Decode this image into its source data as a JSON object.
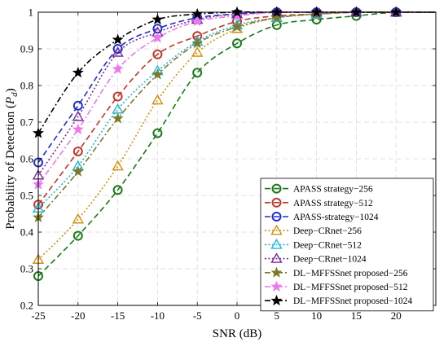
{
  "chart_data": {
    "type": "line",
    "title": "",
    "xlabel": "SNR (dB)",
    "ylabel": "Probability of Detection (P_d)",
    "ylabel_main": "Probability of Detection (",
    "ylabel_sym": "P",
    "ylabel_sub": "d",
    "ylabel_close": ")",
    "xlim": [
      -25,
      25
    ],
    "ylim": [
      0.2,
      1
    ],
    "xticks": [
      -25,
      -20,
      -15,
      -10,
      -5,
      0,
      5,
      10,
      15,
      20
    ],
    "xtick_labels": [
      "-25",
      "-20",
      "-15",
      "-10",
      "-5",
      "0",
      "5",
      "10",
      "15",
      "20"
    ],
    "yticks": [
      0.2,
      0.3,
      0.4,
      0.5,
      0.6,
      0.7,
      0.8,
      0.9,
      1
    ],
    "ytick_labels": [
      "0.2",
      "0.3",
      "0.4",
      "0.5",
      "0.6",
      "0.7",
      "0.8",
      "0.9",
      "1"
    ],
    "grid": true,
    "legend_position": "bottom-right",
    "x": [
      -25,
      -20,
      -15,
      -10,
      -5,
      0,
      5,
      10,
      15,
      20
    ],
    "series": [
      {
        "name": "APASS strategy−256",
        "values": [
          0.28,
          0.39,
          0.515,
          0.67,
          0.835,
          0.915,
          0.965,
          0.98,
          0.99,
          1.0
        ],
        "color": "#1a7a1a",
        "marker": "circle",
        "dash": "dash"
      },
      {
        "name": "APASS strategy−512",
        "values": [
          0.475,
          0.62,
          0.77,
          0.885,
          0.935,
          0.975,
          0.99,
          0.995,
          1.0,
          1.0
        ],
        "color": "#c0392b",
        "marker": "circle",
        "dash": "dash"
      },
      {
        "name": "APASS-strategy−1024",
        "values": [
          0.59,
          0.745,
          0.9,
          0.955,
          0.985,
          0.995,
          1.0,
          1.0,
          1.0,
          1.0
        ],
        "color": "#1f2fd0",
        "marker": "circle",
        "dash": "dash"
      },
      {
        "name": "Deep−CRnet−256",
        "values": [
          0.325,
          0.435,
          0.58,
          0.76,
          0.89,
          0.955,
          0.985,
          0.995,
          1.0,
          1.0
        ],
        "color": "#d4900a",
        "marker": "triangle",
        "dash": "dot"
      },
      {
        "name": "Deep−CRnet−512",
        "values": [
          0.465,
          0.58,
          0.735,
          0.84,
          0.92,
          0.965,
          0.985,
          0.995,
          1.0,
          1.0
        ],
        "color": "#20b8d8",
        "marker": "triangle",
        "dash": "dot"
      },
      {
        "name": "Deep−CRnet−1024",
        "values": [
          0.555,
          0.715,
          0.89,
          0.945,
          0.98,
          0.995,
          1.0,
          1.0,
          1.0,
          1.0
        ],
        "color": "#7d2a9c",
        "marker": "triangle",
        "dash": "dot"
      },
      {
        "name": "DL−MFFSSnet proposed−256",
        "values": [
          0.44,
          0.565,
          0.71,
          0.83,
          0.915,
          0.96,
          0.985,
          0.995,
          1.0,
          1.0
        ],
        "color": "#7a7a2a",
        "marker": "star",
        "dash": "dashdot"
      },
      {
        "name": "DL−MFFSSnet proposed−512",
        "values": [
          0.53,
          0.68,
          0.845,
          0.93,
          0.975,
          0.99,
          1.0,
          1.0,
          1.0,
          1.0
        ],
        "color": "#ee77ee",
        "marker": "star",
        "dash": "dashdot"
      },
      {
        "name": "DL−MFFSSnet proposed−1024",
        "values": [
          0.67,
          0.835,
          0.925,
          0.98,
          0.995,
          1.0,
          1.0,
          1.0,
          1.0,
          1.0
        ],
        "color": "#000000",
        "marker": "star",
        "dash": "dashdot"
      }
    ]
  }
}
